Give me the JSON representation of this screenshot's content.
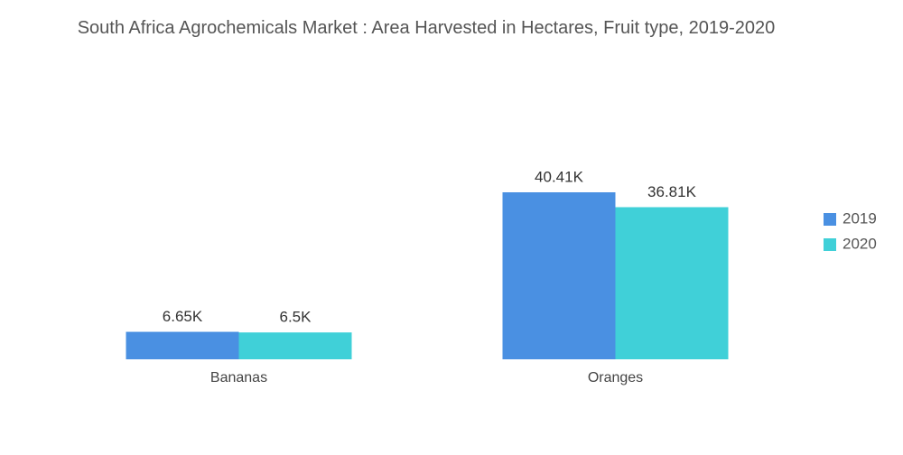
{
  "chart_data": {
    "type": "bar",
    "title": "South Africa Agrochemicals Market : Area Harvested in Hectares, Fruit type, 2019-2020",
    "categories": [
      "Bananas",
      "Oranges"
    ],
    "series": [
      {
        "name": "2019",
        "color": "#4a90e2",
        "values": [
          6.65,
          40.41
        ],
        "value_labels": [
          "6.65K",
          "40.41K"
        ]
      },
      {
        "name": "2020",
        "color": "#40d0d8",
        "values": [
          6.5,
          36.81
        ],
        "value_labels": [
          "6.5K",
          "36.81K"
        ]
      }
    ],
    "legend": "right"
  }
}
